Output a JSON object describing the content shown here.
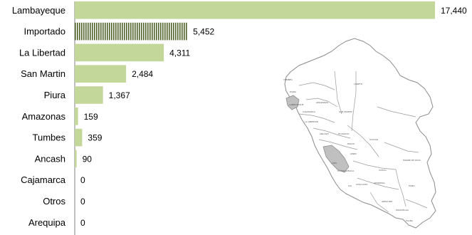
{
  "chart_data": {
    "type": "bar",
    "orientation": "horizontal",
    "categories": [
      "Lambayeque",
      "Importado",
      "La Libertad",
      "San Martin",
      "Piura",
      "Amazonas",
      "Tumbes",
      "Ancash",
      "Cajamarca",
      "Otros",
      "Arequipa"
    ],
    "values": [
      17440,
      5452,
      4311,
      2484,
      1367,
      159,
      359,
      90,
      0,
      0,
      0
    ],
    "value_labels": [
      "17,440",
      "5,452",
      "4,311",
      "2,484",
      "1,367",
      "159",
      "359",
      "90",
      "0",
      "0",
      "0"
    ],
    "bar_styles": [
      "solid",
      "hatched",
      "solid",
      "solid",
      "solid",
      "solid",
      "solid",
      "solid",
      "solid",
      "solid",
      "solid"
    ],
    "xlim": [
      0,
      17440
    ],
    "title": "",
    "xlabel": "",
    "ylabel": "",
    "grid": false,
    "legend": "none"
  },
  "colors": {
    "bar": "#c4d79b",
    "hatch": "#4f6228",
    "axis": "#808080",
    "map_fill": "#ffffff",
    "map_stroke": "#8c8c8c",
    "map_highlight": "#c0c0c0"
  },
  "map": {
    "highlighted_regions": [
      "Lambayeque",
      "Lima"
    ],
    "region_labels": [
      "TUMBES",
      "PIURA",
      "LAMBAYEQUE",
      "CAJAMARCA",
      "AMAZONAS",
      "LA LIBERTAD",
      "SAN MARTIN",
      "LORETO",
      "ANCASH",
      "HUANUCO",
      "PASCO",
      "JUNIN",
      "UCAYALI",
      "LIMA",
      "HUANCAVELICA",
      "ICA",
      "AYACUCHO",
      "APURIMAC",
      "CUSCO",
      "MADRE DE DIOS",
      "PUNO",
      "AREQUIPA",
      "MOQUEGUA",
      "TACNA"
    ]
  }
}
